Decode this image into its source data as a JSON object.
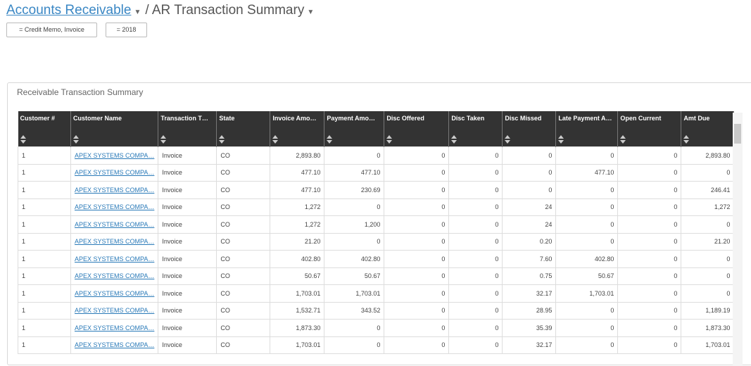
{
  "header": {
    "breadcrumb": "Accounts Receivable",
    "separator": "/",
    "title": "AR Transaction Summary"
  },
  "filters": [
    "= Credit Memo, Invoice",
    "= 2018"
  ],
  "panel": {
    "title": "Receivable Transaction Summary"
  },
  "table": {
    "columns": [
      "Customer #",
      "Customer Name",
      "Transaction T…",
      "State",
      "Invoice Amo…",
      "Payment Amo…",
      "Disc Offered",
      "Disc Taken",
      "Disc Missed",
      "Late Payment A…",
      "Open Current",
      "Amt Due"
    ],
    "rows": [
      [
        "1",
        "APEX SYSTEMS COMPA…",
        "Invoice",
        "CO",
        "2,893.80",
        "0",
        "0",
        "0",
        "0",
        "0",
        "0",
        "2,893.80"
      ],
      [
        "1",
        "APEX SYSTEMS COMPA…",
        "Invoice",
        "CO",
        "477.10",
        "477.10",
        "0",
        "0",
        "0",
        "477.10",
        "0",
        "0"
      ],
      [
        "1",
        "APEX SYSTEMS COMPA…",
        "Invoice",
        "CO",
        "477.10",
        "230.69",
        "0",
        "0",
        "0",
        "0",
        "0",
        "246.41"
      ],
      [
        "1",
        "APEX SYSTEMS COMPA…",
        "Invoice",
        "CO",
        "1,272",
        "0",
        "0",
        "0",
        "24",
        "0",
        "0",
        "1,272"
      ],
      [
        "1",
        "APEX SYSTEMS COMPA…",
        "Invoice",
        "CO",
        "1,272",
        "1,200",
        "0",
        "0",
        "24",
        "0",
        "0",
        "0"
      ],
      [
        "1",
        "APEX SYSTEMS COMPA…",
        "Invoice",
        "CO",
        "21.20",
        "0",
        "0",
        "0",
        "0.20",
        "0",
        "0",
        "21.20"
      ],
      [
        "1",
        "APEX SYSTEMS COMPA…",
        "Invoice",
        "CO",
        "402.80",
        "402.80",
        "0",
        "0",
        "7.60",
        "402.80",
        "0",
        "0"
      ],
      [
        "1",
        "APEX SYSTEMS COMPA…",
        "Invoice",
        "CO",
        "50.67",
        "50.67",
        "0",
        "0",
        "0.75",
        "50.67",
        "0",
        "0"
      ],
      [
        "1",
        "APEX SYSTEMS COMPA…",
        "Invoice",
        "CO",
        "1,703.01",
        "1,703.01",
        "0",
        "0",
        "32.17",
        "1,703.01",
        "0",
        "0"
      ],
      [
        "1",
        "APEX SYSTEMS COMPA…",
        "Invoice",
        "CO",
        "1,532.71",
        "343.52",
        "0",
        "0",
        "28.95",
        "0",
        "0",
        "1,189.19"
      ],
      [
        "1",
        "APEX SYSTEMS COMPA…",
        "Invoice",
        "CO",
        "1,873.30",
        "0",
        "0",
        "0",
        "35.39",
        "0",
        "0",
        "1,873.30"
      ],
      [
        "1",
        "APEX SYSTEMS COMPA…",
        "Invoice",
        "CO",
        "1,703.01",
        "0",
        "0",
        "0",
        "32.17",
        "0",
        "0",
        "1,703.01"
      ]
    ]
  }
}
